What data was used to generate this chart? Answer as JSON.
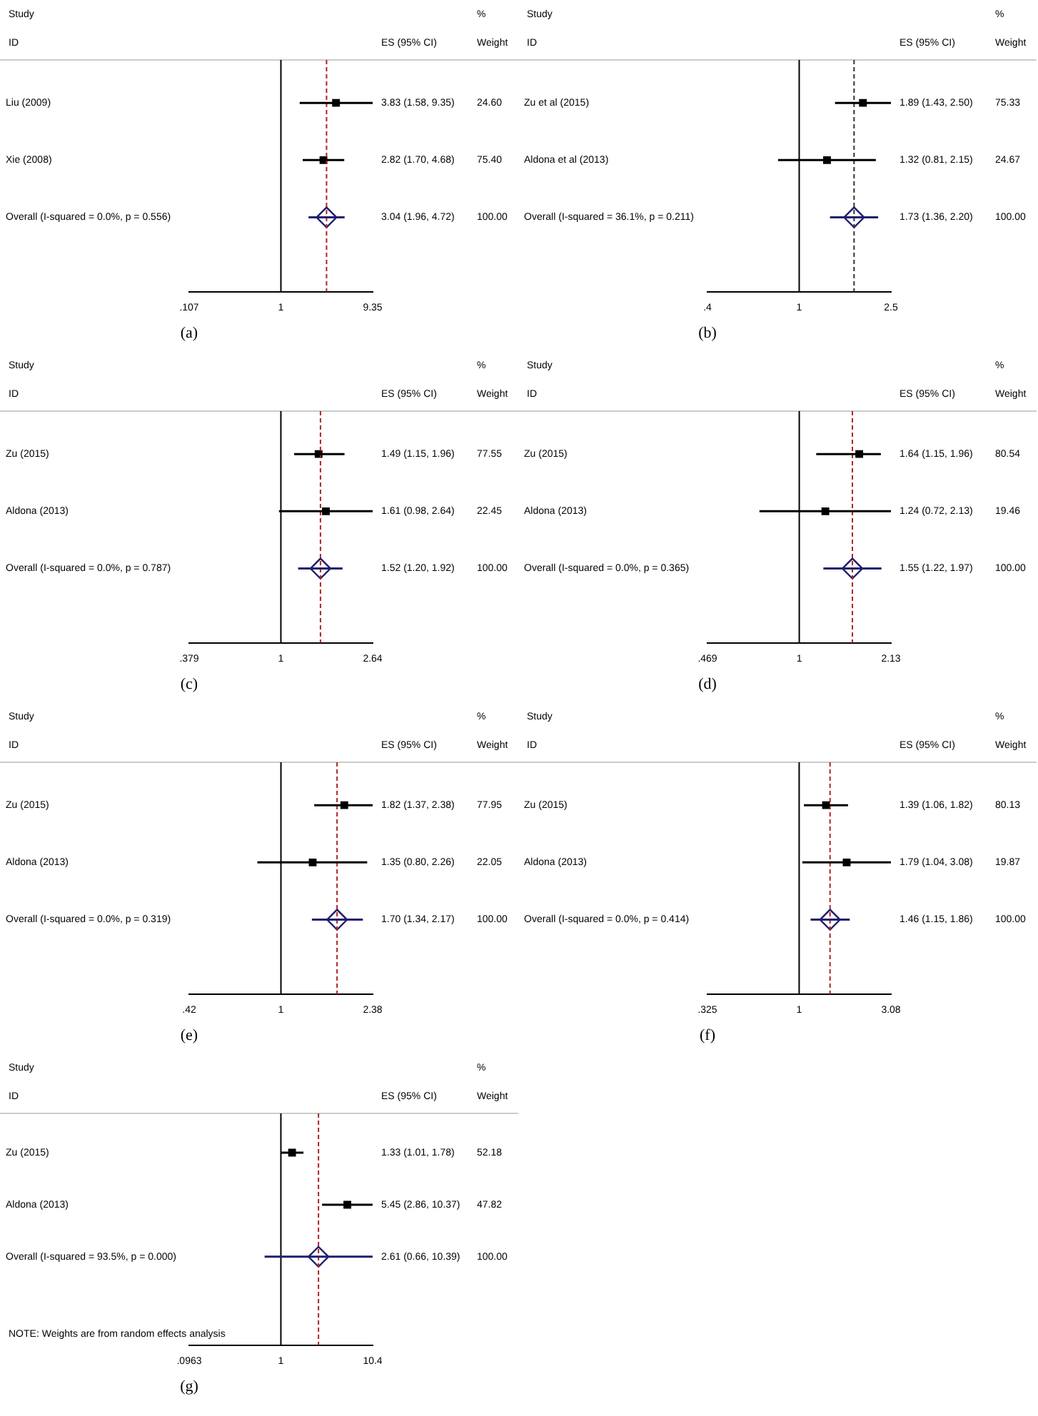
{
  "chart_data": [
    {
      "type": "scatter",
      "orientation": "horizontal",
      "title": "(a)",
      "log": "x",
      "categories": [
        "Liu (2009)",
        "Xie (2008)",
        "Overall (I-squared = 0.0%, p = 0.556)"
      ],
      "series": [
        {
          "marker": "square",
          "color": "#000000",
          "values": [
            3.83,
            2.82,
            null
          ],
          "errors": [
            [
              1.58,
              9.35
            ],
            [
              1.7,
              4.68
            ],
            null
          ]
        },
        {
          "marker": "diamond",
          "color": "#1f1f6e",
          "values": [
            null,
            null,
            3.04
          ],
          "errors": [
            null,
            null,
            [
              1.96,
              4.72
            ]
          ]
        }
      ],
      "xlim": [
        0.107,
        9.35
      ],
      "xticks": [
        {
          "value": 0.107,
          "label": ".107"
        },
        1,
        9.35
      ],
      "ref_lines": [
        {
          "axis": "x",
          "value": 1,
          "color": "#000000"
        },
        {
          "axis": "x",
          "value": 3.04,
          "color": "#b22222",
          "line_style": "dashed"
        }
      ],
      "annotations": [
        "Study",
        "%",
        "ID",
        "ES (95% CI)",
        "Weight",
        "3.83 (1.58, 9.35)",
        "24.60",
        "2.82 (1.70, 4.68)",
        "75.40",
        "3.04 (1.96, 4.72)",
        "100.00"
      ]
    },
    {
      "type": "scatter",
      "orientation": "horizontal",
      "title": "(b)",
      "log": "x",
      "categories": [
        "Zu et al (2015)",
        "Aldona et al (2013)",
        "Overall (I-squared = 36.1%, p = 0.211)"
      ],
      "series": [
        {
          "marker": "square",
          "color": "#000000",
          "values": [
            1.89,
            1.32,
            null
          ],
          "errors": [
            [
              1.43,
              2.5
            ],
            [
              0.81,
              2.15
            ],
            null
          ]
        },
        {
          "marker": "diamond",
          "color": "#1f1f6e",
          "values": [
            null,
            null,
            1.73
          ],
          "errors": [
            null,
            null,
            [
              1.36,
              2.2
            ]
          ]
        }
      ],
      "xlim": [
        0.4,
        2.5
      ],
      "xticks": [
        {
          "value": 0.4,
          "label": ".4"
        },
        1,
        2.5
      ],
      "ref_lines": [
        {
          "axis": "x",
          "value": 1,
          "color": "#000000"
        },
        {
          "axis": "x",
          "value": 1.73,
          "color": "#333333",
          "line_style": "dashed"
        }
      ],
      "annotations": [
        "Study",
        "%",
        "ID",
        "ES (95% CI)",
        "Weight",
        "1.89 (1.43, 2.50)",
        "75.33",
        "1.32 (0.81, 2.15)",
        "24.67",
        "1.73 (1.36, 2.20)",
        "100.00"
      ]
    },
    {
      "type": "scatter",
      "orientation": "horizontal",
      "title": "(c)",
      "log": "x",
      "categories": [
        "Zu (2015)",
        "Aldona (2013)",
        "Overall (I-squared = 0.0%, p = 0.787)"
      ],
      "series": [
        {
          "marker": "square",
          "color": "#000000",
          "values": [
            1.49,
            1.61,
            null
          ],
          "errors": [
            [
              1.15,
              1.96
            ],
            [
              0.98,
              2.64
            ],
            null
          ]
        },
        {
          "marker": "diamond",
          "color": "#1f1f6e",
          "values": [
            null,
            null,
            1.52
          ],
          "errors": [
            null,
            null,
            [
              1.2,
              1.92
            ]
          ]
        }
      ],
      "xlim": [
        0.379,
        2.64
      ],
      "xticks": [
        {
          "value": 0.379,
          "label": ".379"
        },
        1,
        2.64
      ],
      "ref_lines": [
        {
          "axis": "x",
          "value": 1,
          "color": "#000000"
        },
        {
          "axis": "x",
          "value": 1.52,
          "color": "#b22222",
          "line_style": "dashed"
        }
      ],
      "annotations": [
        "Study",
        "%",
        "ID",
        "ES (95% CI)",
        "Weight",
        "1.49 (1.15, 1.96)",
        "77.55",
        "1.61 (0.98, 2.64)",
        "22.45",
        "1.52 (1.20, 1.92)",
        "100.00"
      ]
    },
    {
      "type": "scatter",
      "orientation": "horizontal",
      "title": "(d)",
      "log": "x",
      "categories": [
        "Zu (2015)",
        "Aldona (2013)",
        "Overall (I-squared = 0.0%, p = 0.365)"
      ],
      "series": [
        {
          "marker": "square",
          "color": "#000000",
          "values": [
            1.64,
            1.24,
            null
          ],
          "errors": [
            [
              1.15,
              1.96
            ],
            [
              0.72,
              2.13
            ],
            null
          ]
        },
        {
          "marker": "diamond",
          "color": "#1f1f6e",
          "values": [
            null,
            null,
            1.55
          ],
          "errors": [
            null,
            null,
            [
              1.22,
              1.97
            ]
          ]
        }
      ],
      "xlim": [
        0.469,
        2.13
      ],
      "xticks": [
        {
          "value": 0.469,
          "label": ".469"
        },
        1,
        2.13
      ],
      "ref_lines": [
        {
          "axis": "x",
          "value": 1,
          "color": "#000000"
        },
        {
          "axis": "x",
          "value": 1.55,
          "color": "#b22222",
          "line_style": "dashed"
        }
      ],
      "annotations": [
        "Study",
        "%",
        "ID",
        "ES (95% CI)",
        "Weight",
        "1.64 (1.15, 1.96)",
        "80.54",
        "1.24 (0.72, 2.13)",
        "19.46",
        "1.55 (1.22, 1.97)",
        "100.00"
      ]
    },
    {
      "type": "scatter",
      "orientation": "horizontal",
      "title": "(e)",
      "log": "x",
      "categories": [
        "Zu (2015)",
        "Aldona (2013)",
        "Overall (I-squared = 0.0%, p = 0.319)"
      ],
      "series": [
        {
          "marker": "square",
          "color": "#000000",
          "values": [
            1.82,
            1.35,
            null
          ],
          "errors": [
            [
              1.37,
              2.38
            ],
            [
              0.8,
              2.26
            ],
            null
          ]
        },
        {
          "marker": "diamond",
          "color": "#1f1f6e",
          "values": [
            null,
            null,
            1.7
          ],
          "errors": [
            null,
            null,
            [
              1.34,
              2.17
            ]
          ]
        }
      ],
      "xlim": [
        0.42,
        2.38
      ],
      "xticks": [
        {
          "value": 0.42,
          "label": ".42"
        },
        1,
        2.38
      ],
      "ref_lines": [
        {
          "axis": "x",
          "value": 1,
          "color": "#000000"
        },
        {
          "axis": "x",
          "value": 1.7,
          "color": "#b22222",
          "line_style": "dashed"
        }
      ],
      "annotations": [
        "Study",
        "%",
        "ID",
        "ES (95% CI)",
        "Weight",
        "1.82 (1.37, 2.38)",
        "77.95",
        "1.35 (0.80, 2.26)",
        "22.05",
        "1.70 (1.34, 2.17)",
        "100.00"
      ]
    },
    {
      "type": "scatter",
      "orientation": "horizontal",
      "title": "(f)",
      "log": "x",
      "categories": [
        "Zu (2015)",
        "Aldona (2013)",
        "Overall (I-squared = 0.0%, p = 0.414)"
      ],
      "series": [
        {
          "marker": "square",
          "color": "#000000",
          "values": [
            1.39,
            1.79,
            null
          ],
          "errors": [
            [
              1.06,
              1.82
            ],
            [
              1.04,
              3.08
            ],
            null
          ]
        },
        {
          "marker": "diamond",
          "color": "#1f1f6e",
          "values": [
            null,
            null,
            1.46
          ],
          "errors": [
            null,
            null,
            [
              1.15,
              1.86
            ]
          ]
        }
      ],
      "xlim": [
        0.325,
        3.08
      ],
      "xticks": [
        {
          "value": 0.325,
          "label": ".325"
        },
        1,
        3.08
      ],
      "ref_lines": [
        {
          "axis": "x",
          "value": 1,
          "color": "#000000"
        },
        {
          "axis": "x",
          "value": 1.46,
          "color": "#b22222",
          "line_style": "dashed"
        }
      ],
      "annotations": [
        "Study",
        "%",
        "ID",
        "ES (95% CI)",
        "Weight",
        "1.39 (1.06, 1.82)",
        "80.13",
        "1.79 (1.04, 3.08)",
        "19.87",
        "1.46 (1.15, 1.86)",
        "100.00"
      ]
    },
    {
      "type": "scatter",
      "orientation": "horizontal",
      "title": "(g)",
      "log": "x",
      "categories": [
        "Zu (2015)",
        "Aldona (2013)",
        "Overall (I-squared = 93.5%, p = 0.000)"
      ],
      "series": [
        {
          "marker": "square",
          "color": "#000000",
          "values": [
            1.33,
            5.45,
            null
          ],
          "errors": [
            [
              1.01,
              1.78
            ],
            [
              2.86,
              10.37
            ],
            null
          ]
        },
        {
          "marker": "diamond",
          "color": "#1f1f6e",
          "values": [
            null,
            null,
            2.61
          ],
          "errors": [
            null,
            null,
            [
              0.66,
              10.39
            ]
          ]
        }
      ],
      "xlim": [
        0.0963,
        10.4
      ],
      "xticks": [
        {
          "value": 0.0963,
          "label": ".0963"
        },
        1,
        10.4
      ],
      "ref_lines": [
        {
          "axis": "x",
          "value": 1,
          "color": "#000000"
        },
        {
          "axis": "x",
          "value": 2.61,
          "color": "#b22222",
          "line_style": "dashed"
        }
      ],
      "annotations": [
        "Study",
        "%",
        "ID",
        "ES (95% CI)",
        "Weight",
        "1.33 (1.01, 1.78)",
        "52.18",
        "5.45 (2.86, 10.37)",
        "47.82",
        "2.61 (0.66, 10.39)",
        "100.00",
        "NOTE: Weights are from random effects analysis"
      ]
    }
  ]
}
